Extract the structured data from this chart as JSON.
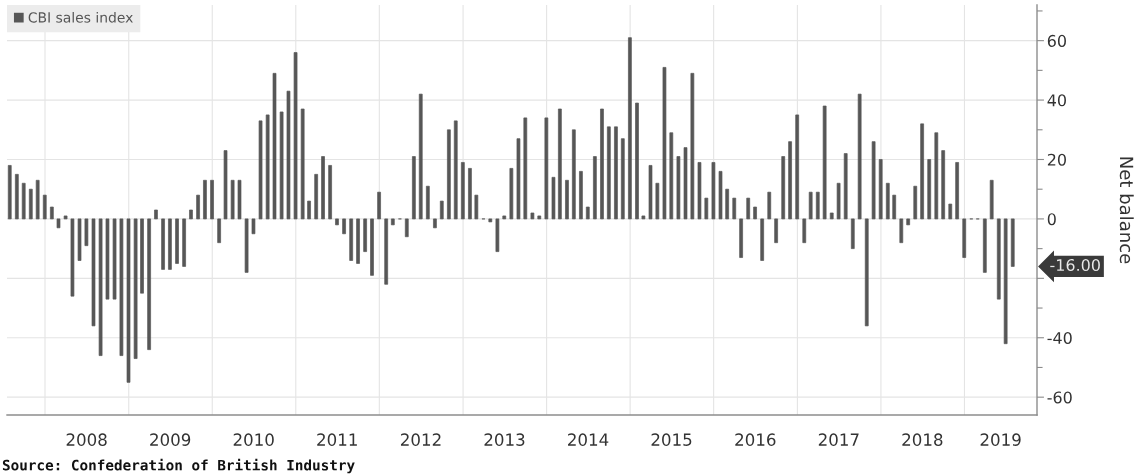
{
  "chart_data": {
    "type": "bar",
    "x": [
      "2007-07-31",
      "2007-08-31",
      "2007-09-30",
      "2007-10-31",
      "2007-11-30",
      "2007-12-31",
      "2008-01-31",
      "2008-02-29",
      "2008-03-31",
      "2008-04-30",
      "2008-05-31",
      "2008-06-30",
      "2008-07-31",
      "2008-08-31",
      "2008-09-30",
      "2008-10-31",
      "2008-11-30",
      "2008-12-31",
      "2009-01-31",
      "2009-02-28",
      "2009-03-31",
      "2009-04-30",
      "2009-05-31",
      "2009-06-30",
      "2009-07-31",
      "2009-08-31",
      "2009-09-30",
      "2009-10-31",
      "2009-11-30",
      "2009-12-31",
      "2010-01-31",
      "2010-02-28",
      "2010-03-31",
      "2010-04-30",
      "2010-05-31",
      "2010-06-30",
      "2010-07-31",
      "2010-08-31",
      "2010-09-30",
      "2010-10-31",
      "2010-11-30",
      "2010-12-31",
      "2011-01-31",
      "2011-02-28",
      "2011-03-31",
      "2011-04-30",
      "2011-05-31",
      "2011-06-30",
      "2011-07-31",
      "2011-08-31",
      "2011-09-30",
      "2011-10-31",
      "2011-11-30",
      "2011-12-31",
      "2012-01-31",
      "2012-02-29",
      "2012-03-31",
      "2012-04-30",
      "2012-05-31",
      "2012-06-30",
      "2012-07-31",
      "2012-08-31",
      "2012-09-30",
      "2012-10-31",
      "2012-11-30",
      "2012-12-31",
      "2013-01-31",
      "2013-02-28",
      "2013-03-31",
      "2013-04-30",
      "2013-05-31",
      "2013-06-30",
      "2013-07-31",
      "2013-08-31",
      "2013-09-30",
      "2013-10-31",
      "2013-11-30",
      "2013-12-31",
      "2014-01-31",
      "2014-02-28",
      "2014-03-31",
      "2014-04-30",
      "2014-05-31",
      "2014-06-30",
      "2014-07-31",
      "2014-08-31",
      "2014-09-30",
      "2014-10-31",
      "2014-11-30",
      "2014-12-31",
      "2015-01-31",
      "2015-02-28",
      "2015-03-31",
      "2015-04-30",
      "2015-05-31",
      "2015-06-30",
      "2015-07-31",
      "2015-08-31",
      "2015-09-30",
      "2015-10-31",
      "2015-11-30",
      "2015-12-31",
      "2016-01-31",
      "2016-02-29",
      "2016-03-31",
      "2016-04-30",
      "2016-05-31",
      "2016-06-30",
      "2016-07-31",
      "2016-08-31",
      "2016-09-30",
      "2016-10-31",
      "2016-11-30",
      "2016-12-31",
      "2017-01-31",
      "2017-02-28",
      "2017-03-31",
      "2017-04-30",
      "2017-05-31",
      "2017-06-30",
      "2017-07-31",
      "2017-08-31",
      "2017-09-30",
      "2017-10-31",
      "2017-11-30",
      "2017-12-31",
      "2018-01-31",
      "2018-02-28",
      "2018-03-31",
      "2018-04-30",
      "2018-05-31",
      "2018-06-30",
      "2018-07-31",
      "2018-08-31",
      "2018-09-30",
      "2018-10-31",
      "2018-11-30",
      "2018-12-31",
      "2019-01-31",
      "2019-02-28",
      "2019-03-31",
      "2019-04-30",
      "2019-05-31",
      "2019-06-30",
      "2019-07-31"
    ],
    "series": [
      {
        "name": "CBI sales index",
        "color": "#575757",
        "values": [
          18,
          15,
          12,
          10,
          13,
          8,
          4,
          -3,
          1,
          -26,
          -14,
          -9,
          -36,
          -46,
          -27,
          -27,
          -46,
          -55,
          -47,
          -25,
          -44,
          3,
          -17,
          -17,
          -15,
          -16,
          3,
          8,
          13,
          13,
          -8,
          23,
          13,
          13,
          -18,
          -5,
          33,
          35,
          49,
          36,
          43,
          56,
          37,
          6,
          15,
          21,
          18,
          -2,
          -5,
          -14,
          -15,
          -11,
          -19,
          9,
          -22,
          -2,
          0,
          -6,
          21,
          42,
          11,
          -3,
          6,
          30,
          33,
          19,
          17,
          8,
          0,
          -1,
          -11,
          1,
          17,
          27,
          34,
          2,
          1,
          34,
          14,
          37,
          13,
          30,
          16,
          4,
          21,
          37,
          31,
          31,
          27,
          61,
          39,
          1,
          18,
          12,
          51,
          29,
          21,
          24,
          49,
          19,
          7,
          19,
          16,
          10,
          7,
          -13,
          7,
          4,
          -14,
          9,
          -8,
          21,
          26,
          35,
          -8,
          9,
          9,
          38,
          2,
          12,
          22,
          -10,
          42,
          -36,
          26,
          20,
          12,
          8,
          -8,
          -2,
          11,
          32,
          20,
          29,
          23,
          5,
          19,
          -13,
          0,
          0,
          -18,
          13,
          -27,
          -42,
          -16
        ]
      }
    ],
    "ylabel": "Net balance",
    "xlim": [
      "2007-07-19",
      "2019-11-14"
    ],
    "xticks": [
      {
        "value": "2008-01-01",
        "label": null
      },
      {
        "value": "2008-07-01",
        "label": "2008"
      },
      {
        "value": "2009-01-01",
        "label": null
      },
      {
        "value": "2009-07-01",
        "label": "2009"
      },
      {
        "value": "2010-01-01",
        "label": null
      },
      {
        "value": "2010-07-01",
        "label": "2010"
      },
      {
        "value": "2011-01-01",
        "label": null
      },
      {
        "value": "2011-07-01",
        "label": "2011"
      },
      {
        "value": "2012-01-01",
        "label": null
      },
      {
        "value": "2012-07-01",
        "label": "2012"
      },
      {
        "value": "2013-01-01",
        "label": null
      },
      {
        "value": "2013-07-01",
        "label": "2013"
      },
      {
        "value": "2014-01-01",
        "label": null
      },
      {
        "value": "2014-07-01",
        "label": "2014"
      },
      {
        "value": "2015-01-01",
        "label": null
      },
      {
        "value": "2015-07-01",
        "label": "2015"
      },
      {
        "value": "2016-01-01",
        "label": null
      },
      {
        "value": "2016-07-01",
        "label": "2016"
      },
      {
        "value": "2017-01-01",
        "label": null
      },
      {
        "value": "2017-07-01",
        "label": "2017"
      },
      {
        "value": "2018-01-01",
        "label": null
      },
      {
        "value": "2018-07-01",
        "label": "2018"
      },
      {
        "value": "2019-01-01",
        "label": null
      },
      {
        "value": "2019-06-08",
        "label": "2019"
      }
    ],
    "ylim": [
      -66,
      72
    ],
    "yticks": [
      -60,
      {
        "value": -50,
        "label": null
      },
      -40,
      {
        "value": -30,
        "label": null
      },
      {
        "value": -20,
        "label": null
      },
      {
        "value": -10,
        "label": null
      },
      0,
      {
        "value": 10,
        "label": null
      },
      20,
      {
        "value": 30,
        "label": null
      },
      40,
      {
        "value": 50,
        "label": null
      },
      60,
      {
        "value": 70,
        "label": null
      }
    ],
    "grid": true,
    "legend": "top left",
    "annotations": [
      "-16.00",
      "Source: Confederation of British Industry"
    ]
  }
}
